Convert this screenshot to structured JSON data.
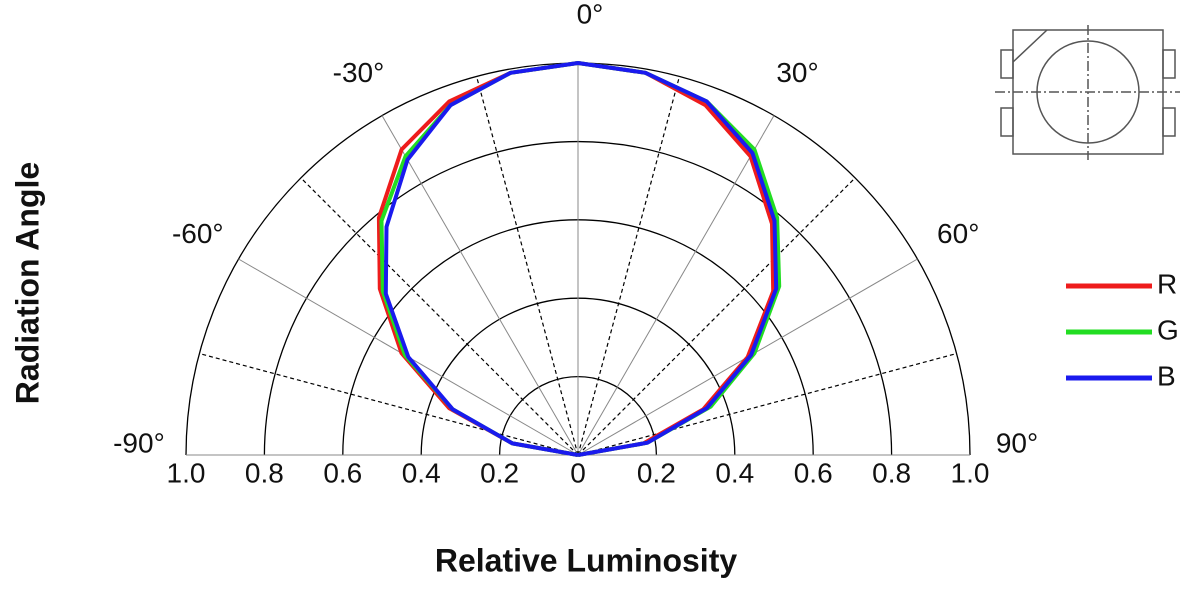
{
  "chart_data": {
    "type": "polar",
    "xlabel": "Relative Luminosity",
    "ylabel": "Radiation Angle",
    "theta": [
      -90,
      -80,
      -70,
      -60,
      -50,
      -40,
      -30,
      -20,
      -10,
      0,
      10,
      20,
      30,
      40,
      50,
      60,
      70,
      80,
      90
    ],
    "series": [
      {
        "name": "R",
        "color": "#ee1c1c",
        "values": [
          0,
          0.17,
          0.35,
          0.52,
          0.66,
          0.79,
          0.9,
          0.96,
          0.99,
          1.0,
          0.99,
          0.95,
          0.88,
          0.77,
          0.65,
          0.5,
          0.34,
          0.17,
          0
        ]
      },
      {
        "name": "G",
        "color": "#22dd22",
        "values": [
          0,
          0.17,
          0.34,
          0.51,
          0.65,
          0.78,
          0.88,
          0.95,
          0.99,
          1.0,
          0.99,
          0.96,
          0.9,
          0.79,
          0.67,
          0.52,
          0.36,
          0.18,
          0
        ]
      },
      {
        "name": "B",
        "color": "#1a1aee",
        "values": [
          0,
          0.17,
          0.34,
          0.5,
          0.64,
          0.76,
          0.87,
          0.95,
          0.99,
          1.0,
          0.99,
          0.96,
          0.89,
          0.78,
          0.66,
          0.51,
          0.35,
          0.18,
          0
        ]
      }
    ],
    "rlim": [
      0,
      1
    ],
    "rticks": [
      0,
      0.2,
      0.4,
      0.6,
      0.8,
      {
        "value": 1,
        "label": "1.0"
      }
    ],
    "thetaticks": [
      {
        "value": -90,
        "label": "-90°"
      },
      {
        "value": -60,
        "label": "-60°"
      },
      {
        "value": -30,
        "label": "-30°"
      },
      {
        "value": 0,
        "label": "0°"
      },
      {
        "value": 30,
        "label": "30°"
      },
      {
        "value": 60,
        "label": "60°"
      },
      {
        "value": 90,
        "label": "90°"
      }
    ],
    "thetaminor": [
      -75,
      -45,
      -15,
      15,
      45,
      75
    ]
  }
}
